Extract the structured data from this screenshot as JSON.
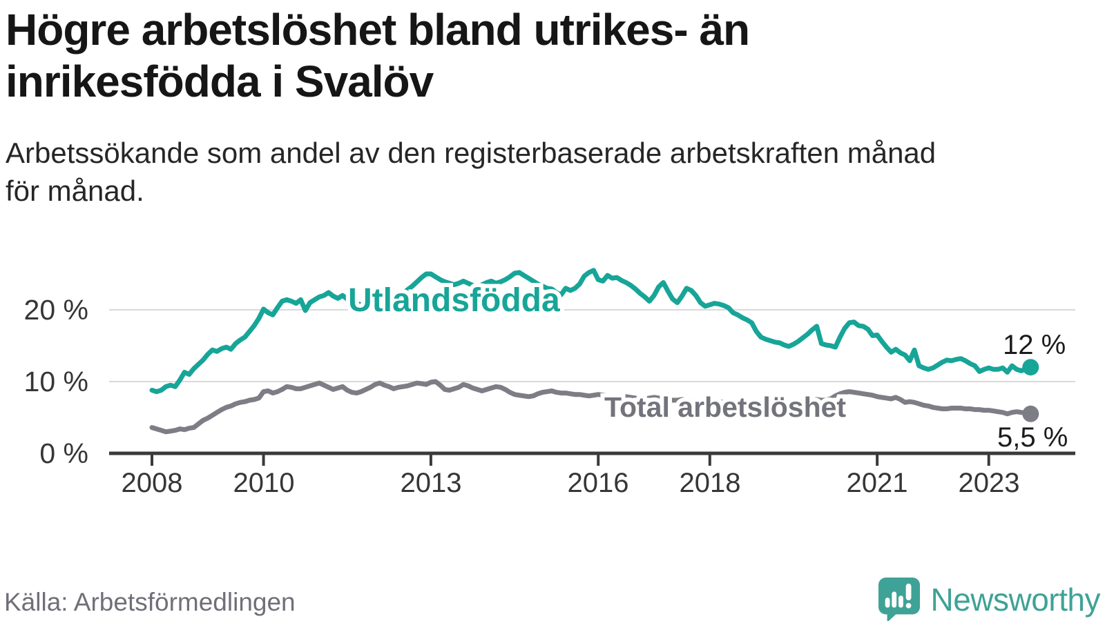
{
  "header": {
    "title_line1": "Högre arbetslöshet bland utrikes- än",
    "title_line2": "inrikesfödda i Svalöv",
    "subtitle_line1": "Arbetssökande som andel av den registerbaserade arbetskraften månad",
    "subtitle_line2": "för månad."
  },
  "footer": {
    "source": "Källa: Arbetsförmedlingen",
    "brand": "Newsworthy"
  },
  "colors": {
    "teal_line": "#17a598",
    "gray_line": "#7d7d85",
    "gray_label": "#73737c",
    "logo_teal": "#3fa296",
    "grid": "#d9d9d9",
    "axis": "#3a3a3a"
  },
  "chart_data": {
    "type": "line",
    "title": "Högre arbetslöshet bland utrikes- än inrikesfödda i Svalöv",
    "subtitle": "Arbetssökande som andel av den registerbaserade arbetskraften månad för månad.",
    "unit": "%",
    "x_start": "2008-01",
    "x_end": "2023-10",
    "x_interval": "monthly",
    "x_tick_labels": [
      "2008",
      "2010",
      "2013",
      "2016",
      "2018",
      "2021",
      "2023"
    ],
    "y_tick_labels": [
      "0 %",
      "10 %",
      "20 %"
    ],
    "y_ticks": [
      0,
      10,
      20
    ],
    "ylim": [
      0,
      27
    ],
    "grid": "horizontal-only",
    "legend_position": "inline-labels",
    "series": [
      {
        "name": "Utlandsfödda",
        "color": "#17a598",
        "end_label": "12 %",
        "end_value": 12.0,
        "values": [
          8.8,
          8.6,
          8.8,
          9.3,
          9.5,
          9.3,
          10.2,
          11.3,
          11.0,
          11.8,
          12.4,
          13.0,
          13.8,
          14.4,
          14.2,
          14.6,
          14.8,
          14.5,
          15.3,
          15.8,
          16.2,
          17.0,
          17.8,
          18.8,
          20.1,
          19.6,
          19.3,
          20.3,
          21.2,
          21.4,
          21.2,
          20.9,
          21.4,
          19.9,
          21.0,
          21.4,
          21.8,
          22.0,
          22.4,
          21.9,
          21.6,
          22.0,
          21.5,
          21.2,
          20.9,
          20.7,
          20.7,
          20.9,
          21.0,
          20.8,
          20.7,
          20.7,
          21.2,
          21.8,
          22.3,
          22.8,
          23.3,
          23.9,
          24.5,
          25.0,
          25.0,
          24.6,
          24.2,
          23.9,
          23.7,
          23.5,
          23.7,
          24.0,
          23.7,
          23.4,
          23.2,
          23.5,
          23.8,
          24.0,
          23.7,
          23.9,
          24.2,
          24.6,
          25.1,
          25.2,
          24.8,
          24.4,
          24.0,
          23.6,
          23.3,
          23.0,
          22.9,
          22.4,
          22.1,
          23.0,
          22.7,
          23.0,
          23.6,
          24.7,
          25.2,
          25.5,
          24.2,
          24.0,
          24.8,
          24.4,
          24.5,
          24.1,
          23.8,
          23.4,
          22.9,
          22.3,
          21.8,
          21.2,
          22.0,
          23.2,
          23.8,
          22.6,
          21.5,
          21.0,
          21.9,
          23.0,
          22.7,
          22.0,
          21.0,
          20.5,
          20.7,
          20.9,
          20.8,
          20.6,
          20.3,
          19.6,
          19.3,
          18.9,
          18.6,
          18.2,
          17.0,
          16.2,
          15.9,
          15.7,
          15.5,
          15.4,
          15.1,
          14.9,
          15.2,
          15.6,
          16.1,
          16.6,
          17.2,
          17.7,
          15.3,
          15.1,
          15.0,
          14.8,
          16.2,
          17.4,
          18.2,
          18.3,
          17.8,
          17.7,
          17.3,
          16.4,
          16.5,
          15.6,
          14.8,
          14.1,
          14.5,
          14.0,
          13.7,
          12.9,
          14.4,
          12.2,
          11.9,
          11.7,
          11.9,
          12.3,
          12.7,
          13.0,
          12.9,
          13.1,
          13.2,
          12.9,
          12.5,
          12.2,
          11.4,
          11.7,
          11.9,
          11.7,
          11.7,
          11.9,
          11.3,
          12.2,
          11.7,
          11.5,
          11.8,
          12.0
        ]
      },
      {
        "name": "Total arbetslöshet",
        "color": "#7d7d85",
        "end_label": "5,5 %",
        "end_value": 5.5,
        "values": [
          3.6,
          3.4,
          3.2,
          3.0,
          3.1,
          3.2,
          3.4,
          3.3,
          3.5,
          3.6,
          4.1,
          4.6,
          4.9,
          5.3,
          5.7,
          6.1,
          6.4,
          6.6,
          6.9,
          7.1,
          7.2,
          7.4,
          7.5,
          7.7,
          8.6,
          8.7,
          8.4,
          8.6,
          8.9,
          9.3,
          9.2,
          9.0,
          9.0,
          9.2,
          9.4,
          9.6,
          9.8,
          9.5,
          9.2,
          8.9,
          9.1,
          9.3,
          8.8,
          8.5,
          8.4,
          8.6,
          8.9,
          9.2,
          9.6,
          9.8,
          9.5,
          9.3,
          9.0,
          9.2,
          9.3,
          9.4,
          9.6,
          9.8,
          9.7,
          9.6,
          9.9,
          10.0,
          9.5,
          8.9,
          8.8,
          9.0,
          9.2,
          9.6,
          9.4,
          9.1,
          8.9,
          8.7,
          8.9,
          9.1,
          9.3,
          9.2,
          8.9,
          8.5,
          8.2,
          8.1,
          8.0,
          7.9,
          8.0,
          8.3,
          8.5,
          8.6,
          8.7,
          8.5,
          8.4,
          8.4,
          8.3,
          8.2,
          8.2,
          8.1,
          8.0,
          8.1,
          8.2,
          8.1,
          8.0,
          7.9,
          7.8,
          7.8,
          7.9,
          7.8,
          7.7,
          7.6,
          7.6,
          7.7,
          7.8,
          7.7,
          7.6,
          7.5,
          7.4,
          7.4,
          7.5,
          7.4,
          7.3,
          7.2,
          7.2,
          7.3,
          7.4,
          7.3,
          7.2,
          7.1,
          7.0,
          7.0,
          7.1,
          7.0,
          6.9,
          6.9,
          7.0,
          7.1,
          7.2,
          7.1,
          7.0,
          7.0,
          6.9,
          6.9,
          7.0,
          7.1,
          7.2,
          7.3,
          7.4,
          7.5,
          7.4,
          7.4,
          7.6,
          8.0,
          8.3,
          8.5,
          8.6,
          8.5,
          8.4,
          8.3,
          8.2,
          8.1,
          7.9,
          7.8,
          7.7,
          7.6,
          7.8,
          7.5,
          7.1,
          7.2,
          7.1,
          6.9,
          6.7,
          6.6,
          6.4,
          6.3,
          6.2,
          6.2,
          6.3,
          6.3,
          6.3,
          6.2,
          6.2,
          6.1,
          6.1,
          6.0,
          6.0,
          5.9,
          5.8,
          5.7,
          5.5,
          5.7,
          5.8,
          5.7,
          5.6,
          5.5
        ]
      }
    ]
  }
}
